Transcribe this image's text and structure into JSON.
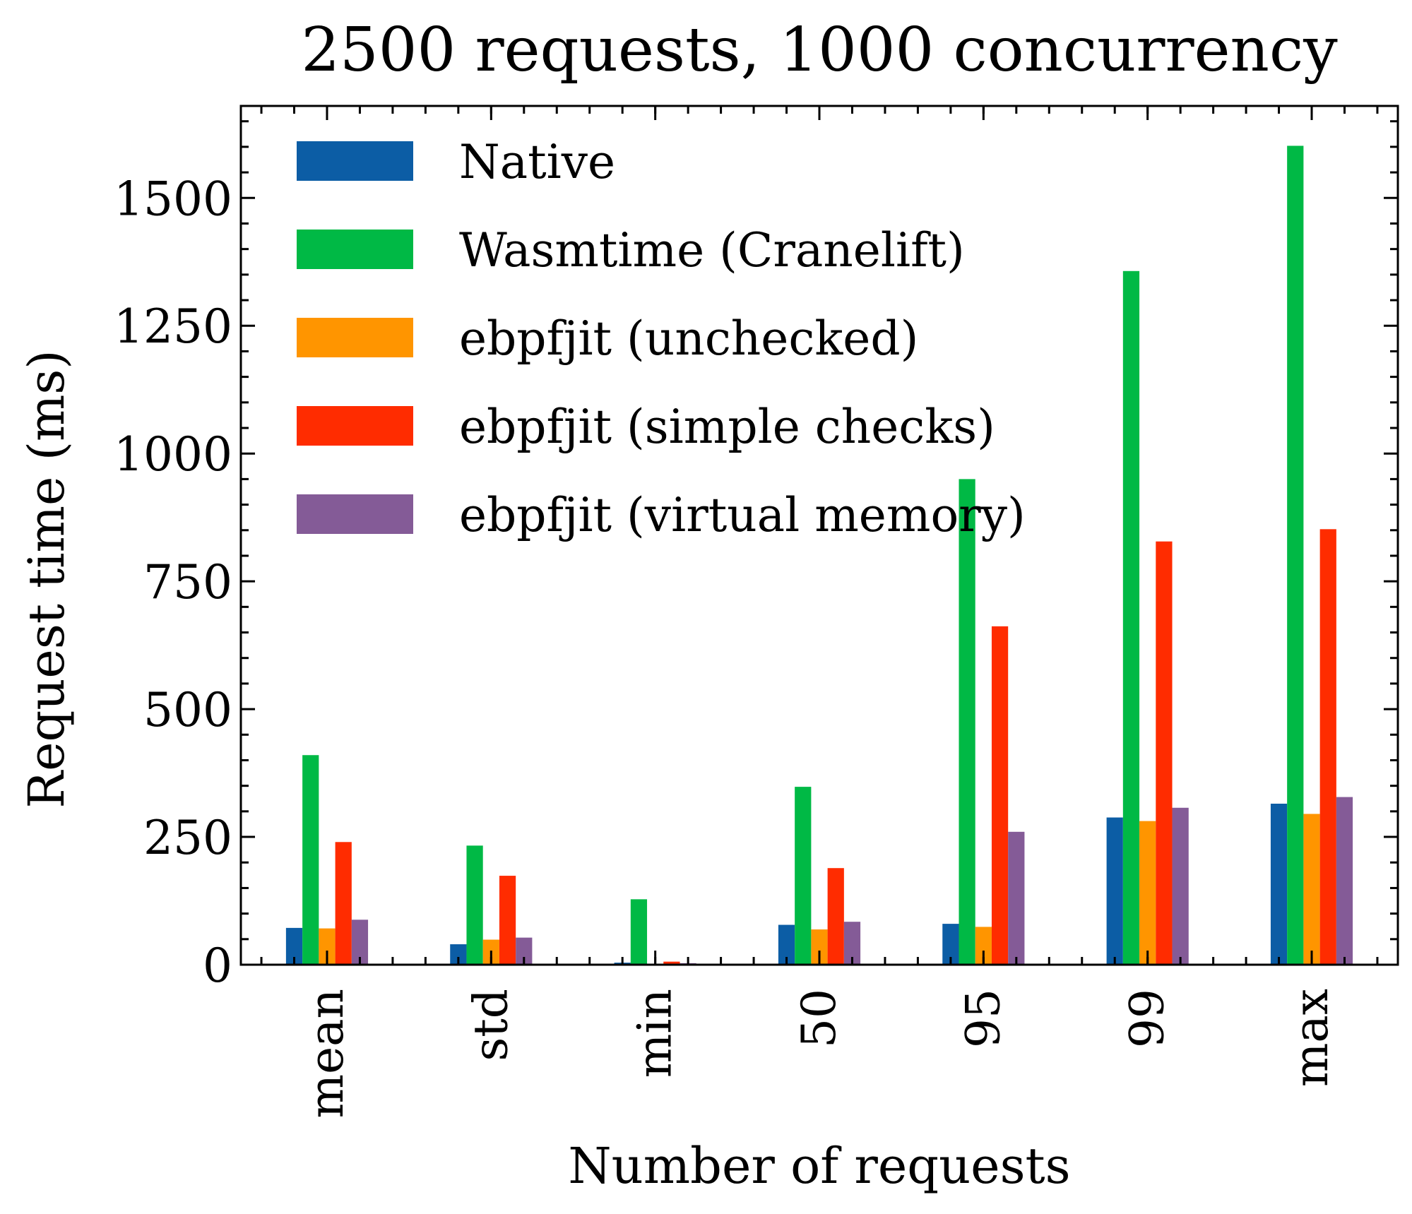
{
  "chart_data": {
    "type": "bar",
    "title": "2500 requests, 1000 concurrency",
    "xlabel": "Number of requests",
    "ylabel": "Request time (ms)",
    "categories": [
      "mean",
      "std",
      "min",
      "50",
      "95",
      "99",
      "max"
    ],
    "ylim": [
      0,
      1680
    ],
    "yticks": [
      0,
      250,
      500,
      750,
      1000,
      1250,
      1500
    ],
    "legend_position": "top-left",
    "grid": false,
    "series": [
      {
        "name": "Native",
        "color": "#0C5DA5",
        "values": [
          72,
          40,
          4,
          78,
          80,
          288,
          315
        ]
      },
      {
        "name": "Wasmtime (Cranelift)",
        "color": "#00B945",
        "values": [
          410,
          233,
          128,
          348,
          950,
          1357,
          1602
        ]
      },
      {
        "name": "ebpfjit (unchecked)",
        "color": "#FF9500",
        "values": [
          71,
          49,
          2,
          69,
          74,
          281,
          295
        ]
      },
      {
        "name": "ebpfjit (simple checks)",
        "color": "#FF2C00",
        "values": [
          240,
          174,
          6,
          189,
          662,
          828,
          852
        ]
      },
      {
        "name": "ebpfjit (virtual memory)",
        "color": "#845B97",
        "values": [
          88,
          53,
          3,
          84,
          260,
          307,
          328
        ]
      }
    ]
  }
}
